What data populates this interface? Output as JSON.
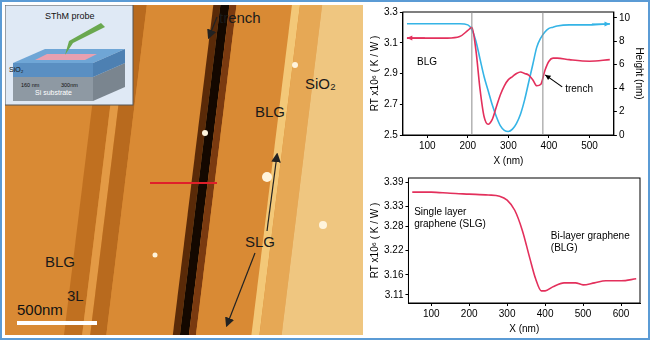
{
  "image": {
    "labels": [
      "trench",
      "BLG",
      "SiO₂",
      "SLG",
      "BLG",
      "3L"
    ],
    "scale_bar": "500nm",
    "inset": {
      "labels": [
        "SThM probe",
        "SiO₂",
        "Si substrate",
        "160 nm",
        "300nm"
      ]
    }
  },
  "chart_data": [
    {
      "type": "line",
      "x_label": "X (nm)",
      "y_label": "RT x10⁶ ( K / W )",
      "y2_label": "Height (nm)",
      "x": [
        50,
        100,
        150,
        180,
        200,
        210,
        220,
        230,
        240,
        250,
        260,
        270,
        280,
        290,
        300,
        310,
        320,
        330,
        340,
        350,
        360,
        370,
        380,
        390,
        400,
        410,
        420,
        450,
        500,
        550
      ],
      "series": [
        {
          "color": "#e3305c",
          "values": [
            3.13,
            3.13,
            3.13,
            3.14,
            3.18,
            3.2,
            3.05,
            2.8,
            2.62,
            2.57,
            2.6,
            2.68,
            2.76,
            2.82,
            2.86,
            2.88,
            2.9,
            2.91,
            2.9,
            2.89,
            2.86,
            2.82,
            2.83,
            2.92,
            2.98,
            3.0,
            3.0,
            2.99,
            2.98,
            2.99
          ]
        },
        {
          "color": "#35b4e6",
          "axis": "y2",
          "values": [
            9.5,
            9.5,
            9.5,
            9.5,
            9.4,
            9.0,
            8.0,
            6.5,
            5.0,
            3.8,
            2.6,
            1.6,
            0.8,
            0.4,
            0.3,
            0.5,
            1.0,
            1.8,
            3.0,
            4.5,
            6.0,
            7.5,
            8.3,
            8.8,
            9.1,
            9.2,
            9.3,
            9.4,
            9.4,
            9.5
          ]
        }
      ],
      "xlim": [
        40,
        560
      ],
      "xticks": [
        100,
        200,
        300,
        400,
        500
      ],
      "ylim": [
        2.5,
        3.3
      ],
      "yticks": [
        2.5,
        2.7,
        2.9,
        3.1,
        3.3
      ],
      "y2lim": [
        0,
        10.5
      ],
      "y2ticks": [
        0,
        2,
        4,
        6,
        8,
        10
      ],
      "vertical_lines": [
        210,
        385
      ],
      "annotations": [
        {
          "text": "BLG",
          "x": 75,
          "y": 2.97
        },
        {
          "text": "trench",
          "x": 440,
          "y": 2.8
        }
      ],
      "grid": false
    },
    {
      "type": "line",
      "x_label": "X (nm)",
      "y_label": "RT x10⁶ ( K / W )",
      "x": [
        50,
        100,
        150,
        200,
        250,
        280,
        300,
        320,
        340,
        360,
        375,
        390,
        400,
        420,
        450,
        480,
        500,
        530,
        560,
        600,
        640
      ],
      "series": [
        {
          "color": "#e3305c",
          "values": [
            3.365,
            3.365,
            3.362,
            3.36,
            3.358,
            3.355,
            3.345,
            3.32,
            3.27,
            3.2,
            3.15,
            3.12,
            3.12,
            3.13,
            3.14,
            3.14,
            3.135,
            3.14,
            3.145,
            3.145,
            3.15
          ]
        }
      ],
      "xlim": [
        40,
        650
      ],
      "xticks": [
        100,
        200,
        300,
        400,
        500,
        600
      ],
      "ylim": [
        3.09,
        3.4
      ],
      "yticks": [
        3.11,
        3.16,
        3.22,
        3.28,
        3.33,
        3.39
      ],
      "annotations": [
        {
          "text": "Single layer graphene (SLG)",
          "x": 55,
          "y": 3.315
        },
        {
          "text": "Bi-layer graphene (BLG)",
          "x": 415,
          "y": 3.255
        }
      ],
      "grid": false
    }
  ]
}
